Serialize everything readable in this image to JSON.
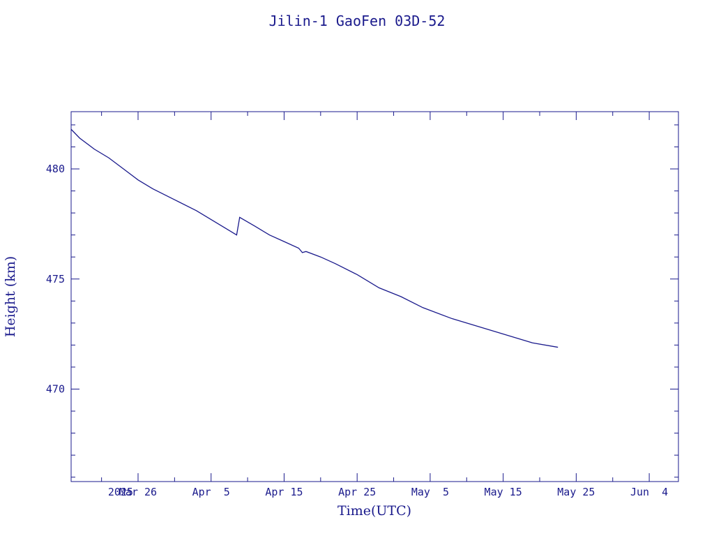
{
  "chart_data": {
    "type": "line",
    "title": "Jilin-1 GaoFen 03D-52",
    "xlabel": "Time(UTC)",
    "ylabel": "Height (km)",
    "xlim": [
      "2025-03-16T20:00",
      "2025-06-08T00:00"
    ],
    "ylim": [
      465.8,
      482.6
    ],
    "grid": false,
    "x_ticks": [
      {
        "date": "2025-03-21",
        "label": "2025"
      },
      {
        "date": "2025-03-26",
        "label": "Mar 26"
      },
      {
        "date": "2025-04-05",
        "label": "Apr  5"
      },
      {
        "date": "2025-04-15",
        "label": "Apr 15"
      },
      {
        "date": "2025-04-25",
        "label": "Apr 25"
      },
      {
        "date": "2025-05-05",
        "label": "May  5"
      },
      {
        "date": "2025-05-15",
        "label": "May 15"
      },
      {
        "date": "2025-05-25",
        "label": "May 25"
      },
      {
        "date": "2025-06-04",
        "label": "Jun  4"
      }
    ],
    "y_ticks": [
      {
        "value": 470,
        "label": "470"
      },
      {
        "value": 475,
        "label": "475"
      },
      {
        "value": 480,
        "label": "480"
      }
    ],
    "series": [
      {
        "color": "#1a1a8c",
        "x": [
          "2025-03-16T20:00",
          "2025-03-18T00:00",
          "2025-03-20T00:00",
          "2025-03-22T00:00",
          "2025-03-24T00:00",
          "2025-03-26T00:00",
          "2025-03-28T00:00",
          "2025-03-31T00:00",
          "2025-04-03T00:00",
          "2025-04-05T00:00",
          "2025-04-07T00:00",
          "2025-04-08T12:00",
          "2025-04-08T22:00",
          "2025-04-11T00:00",
          "2025-04-13T00:00",
          "2025-04-15T00:00",
          "2025-04-17T00:00",
          "2025-04-17T12:00",
          "2025-04-18T00:00",
          "2025-04-20T00:00",
          "2025-04-22T00:00",
          "2025-04-25T00:00",
          "2025-04-28T00:00",
          "2025-05-01T00:00",
          "2025-05-04T00:00",
          "2025-05-08T00:00",
          "2025-05-12T00:00",
          "2025-05-16T00:00",
          "2025-05-19T00:00",
          "2025-05-22T12:00"
        ],
        "y": [
          481.8,
          481.4,
          480.9,
          480.5,
          480.0,
          479.5,
          479.1,
          478.6,
          478.1,
          477.7,
          477.3,
          477.0,
          477.8,
          477.4,
          477.0,
          476.7,
          476.4,
          476.2,
          476.25,
          476.0,
          475.7,
          475.2,
          474.6,
          474.2,
          473.7,
          473.2,
          472.8,
          472.4,
          472.1,
          471.9
        ]
      }
    ]
  }
}
